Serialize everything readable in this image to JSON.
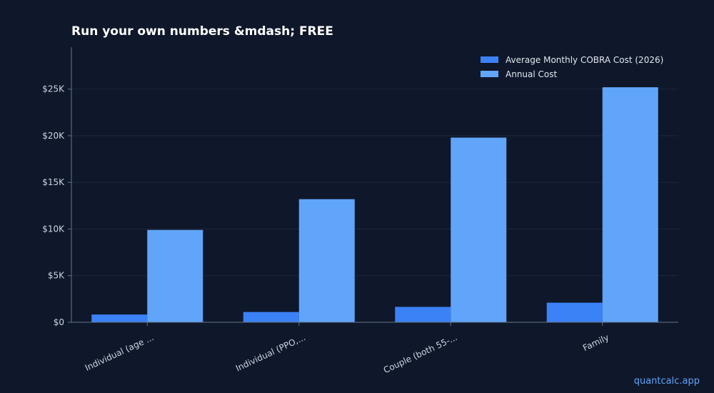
{
  "chart_data": {
    "type": "bar",
    "title": "Run your own numbers &mdash; FREE",
    "categories": [
      "Individual (age ...",
      "Individual (PPO,...",
      "Couple (both 55-...",
      "Family"
    ],
    "series": [
      {
        "name": "Average Monthly COBRA Cost (2026)",
        "color": "#3b82f6",
        "values": [
          830,
          1100,
          1650,
          2100
        ]
      },
      {
        "name": "Annual Cost",
        "color": "#60a5fa",
        "values": [
          9900,
          13200,
          19800,
          25200
        ]
      }
    ],
    "ylim": [
      0,
      29500
    ],
    "yticks": [
      0,
      5000,
      10000,
      15000,
      20000,
      25000
    ],
    "ytick_labels": [
      "$0",
      "$5K",
      "$10K",
      "$15K",
      "$20K",
      "$25K"
    ],
    "grid": true,
    "legend": "top-right",
    "xlabel": "",
    "ylabel": ""
  },
  "watermark": "quantcalc.app",
  "colors": {
    "background": "#0f172a",
    "grid": "#1e293b",
    "axis": "#64748b"
  }
}
